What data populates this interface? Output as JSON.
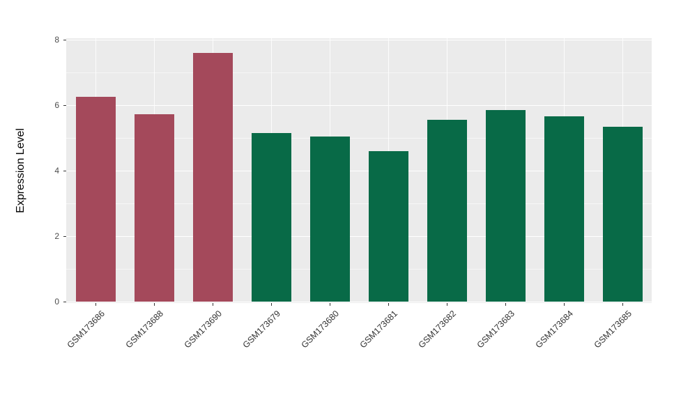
{
  "chart_data": {
    "type": "bar",
    "title": "",
    "xlabel": "",
    "ylabel": "Expression Level",
    "ylim": [
      0,
      8
    ],
    "yticks": [
      0,
      2,
      4,
      6,
      8
    ],
    "grid": true,
    "legend": "none",
    "panel_background": "#EBEBEB",
    "gridline_color": "#FFFFFF",
    "categories": [
      "GSM173686",
      "GSM173688",
      "GSM173690",
      "GSM173679",
      "GSM173680",
      "GSM173681",
      "GSM173682",
      "GSM173683",
      "GSM173684",
      "GSM173685"
    ],
    "values": [
      6.25,
      5.72,
      7.6,
      5.15,
      5.05,
      4.6,
      5.55,
      5.85,
      5.65,
      5.35
    ],
    "bar_colors": [
      "#A4495B",
      "#A4495B",
      "#A4495B",
      "#086A47",
      "#086A47",
      "#086A47",
      "#086A47",
      "#086A47",
      "#086A47",
      "#086A47"
    ],
    "group_colors": {
      "left-group": "#A4495B",
      "right-group": "#086A47"
    }
  }
}
